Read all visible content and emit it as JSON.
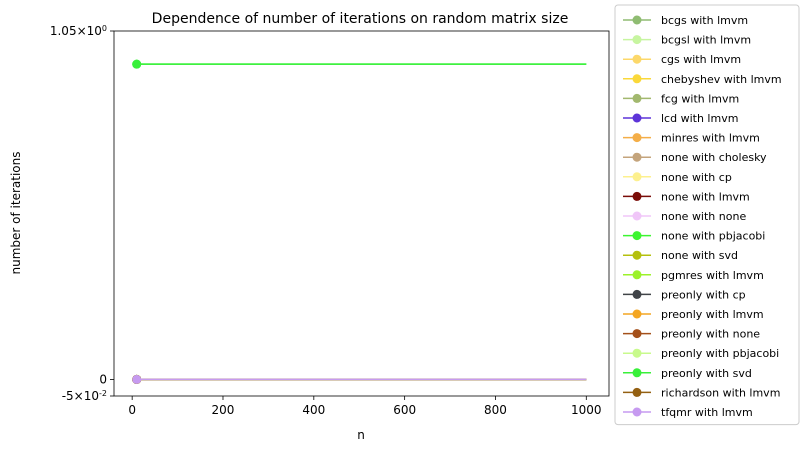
{
  "chart_data": {
    "type": "line",
    "title": "Dependence of number of iterations on random matrix size",
    "xlabel": "n",
    "ylabel": "number of iterations",
    "xlim": [
      -40,
      1050
    ],
    "ylim": [
      -0.05,
      1.05
    ],
    "xticks": [
      0,
      200,
      400,
      600,
      800,
      1000
    ],
    "xtick_labels": [
      "0",
      "200",
      "400",
      "600",
      "800",
      "1000"
    ],
    "yticks": [
      -0.05,
      0,
      1.05
    ],
    "ytick_labels": [
      "-5×10^-2",
      "0",
      "1.05×10^0"
    ],
    "grid": false,
    "legend_position": "outside-right",
    "series": [
      {
        "name": "bcgs with lmvm",
        "color": "#8fbc72",
        "x": [
          10,
          1000
        ],
        "y": [
          0,
          0
        ]
      },
      {
        "name": "bcgsl with lmvm",
        "color": "#c7f5a0",
        "x": [
          10,
          1000
        ],
        "y": [
          0,
          0
        ]
      },
      {
        "name": "cgs with lmvm",
        "color": "#fcd86a",
        "x": [
          10,
          1000
        ],
        "y": [
          0,
          0
        ]
      },
      {
        "name": "chebyshev with lmvm",
        "color": "#fad83a",
        "x": [
          10,
          1000
        ],
        "y": [
          0,
          0
        ]
      },
      {
        "name": "fcg with lmvm",
        "color": "#a2b86e",
        "x": [
          10,
          1000
        ],
        "y": [
          0,
          0
        ]
      },
      {
        "name": "lcd with lmvm",
        "color": "#5d34d8",
        "x": [
          10,
          1000
        ],
        "y": [
          0,
          0
        ]
      },
      {
        "name": "minres with lmvm",
        "color": "#f4ae48",
        "x": [
          10,
          1000
        ],
        "y": [
          0,
          0
        ]
      },
      {
        "name": "none with cholesky",
        "color": "#c4a47c",
        "x": [
          10,
          1000
        ],
        "y": [
          0,
          0
        ]
      },
      {
        "name": "none with cp",
        "color": "#fdf08e",
        "x": [
          10,
          1000
        ],
        "y": [
          0,
          0
        ]
      },
      {
        "name": "none with lmvm",
        "color": "#7a0c08",
        "x": [
          10,
          1000
        ],
        "y": [
          0,
          0
        ]
      },
      {
        "name": "none with none",
        "color": "#f0c6f8",
        "x": [
          10,
          1000
        ],
        "y": [
          0,
          0
        ]
      },
      {
        "name": "none with pbjacobi",
        "color": "#3df530",
        "x": [
          10,
          1000
        ],
        "y": [
          0.95,
          0.95
        ]
      },
      {
        "name": "none with svd",
        "color": "#b4c00e",
        "x": [
          10,
          1000
        ],
        "y": [
          0,
          0
        ]
      },
      {
        "name": "pgmres with lmvm",
        "color": "#9cf22a",
        "x": [
          10,
          1000
        ],
        "y": [
          0,
          0
        ]
      },
      {
        "name": "preonly with cp",
        "color": "#404448",
        "x": [
          10,
          1000
        ],
        "y": [
          0,
          0
        ]
      },
      {
        "name": "preonly with lmvm",
        "color": "#f4a622",
        "x": [
          10,
          1000
        ],
        "y": [
          0,
          0
        ]
      },
      {
        "name": "preonly with none",
        "color": "#a4501a",
        "x": [
          10,
          1000
        ],
        "y": [
          0,
          0
        ]
      },
      {
        "name": "preonly with pbjacobi",
        "color": "#c8fa8c",
        "x": [
          10,
          1000
        ],
        "y": [
          0,
          0
        ]
      },
      {
        "name": "preonly with svd",
        "color": "#38f03a",
        "x": [
          10,
          1000
        ],
        "y": [
          0.95,
          0.95
        ]
      },
      {
        "name": "richardson with lmvm",
        "color": "#946012",
        "x": [
          10,
          1000
        ],
        "y": [
          0,
          0
        ]
      },
      {
        "name": "tfqmr with lmvm",
        "color": "#c69af0",
        "x": [
          10,
          1000
        ],
        "y": [
          0,
          0
        ]
      }
    ]
  }
}
